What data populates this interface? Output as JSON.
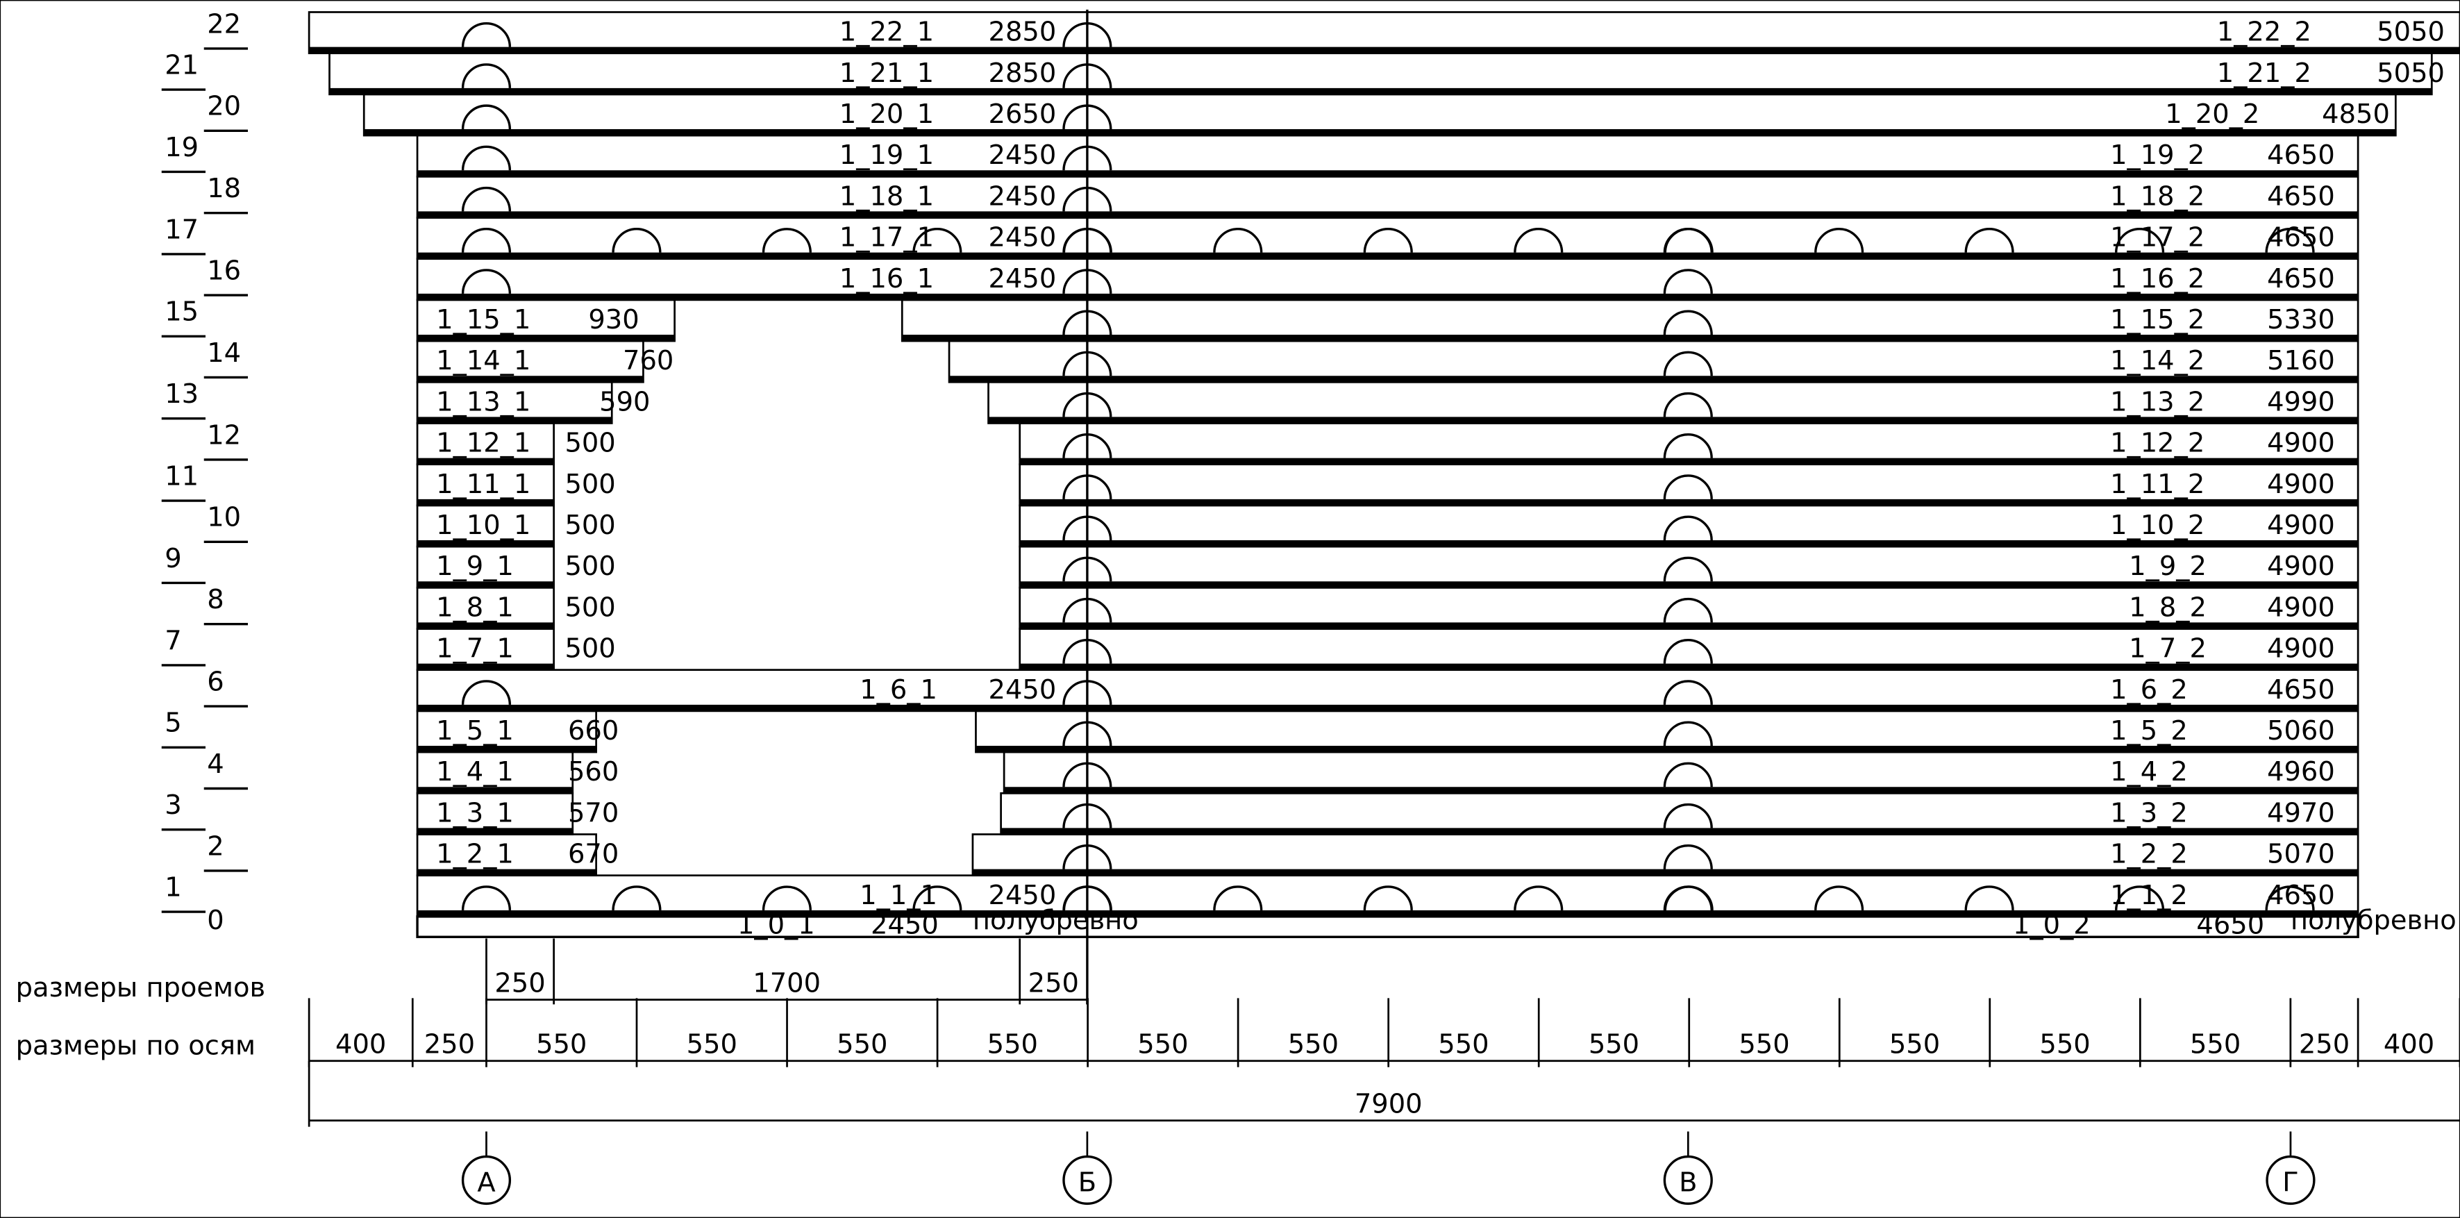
{
  "rows": [
    {
      "number": "0",
      "left": {
        "id": "1_0_1",
        "length": "2450",
        "note": "полубревно"
      },
      "right": {
        "id": "1_0_2",
        "length": "4650",
        "note": "полубревно"
      }
    },
    {
      "number": "1",
      "left": {
        "id": "1_1_1",
        "length": "2450"
      },
      "right": {
        "id": "1_1_2",
        "length": "4650"
      }
    },
    {
      "number": "2",
      "left": {
        "id": "1_2_1",
        "length": "670"
      },
      "right": {
        "id": "1_2_2",
        "length": "5070"
      }
    },
    {
      "number": "3",
      "left": {
        "id": "1_3_1",
        "length": "570"
      },
      "right": {
        "id": "1_3_2",
        "length": "4970"
      }
    },
    {
      "number": "4",
      "left": {
        "id": "1_4_1",
        "length": "560"
      },
      "right": {
        "id": "1_4_2",
        "length": "4960"
      }
    },
    {
      "number": "5",
      "left": {
        "id": "1_5_1",
        "length": "660"
      },
      "right": {
        "id": "1_5_2",
        "length": "5060"
      }
    },
    {
      "number": "6",
      "left": {
        "id": "1_6_1",
        "length": "2450"
      },
      "right": {
        "id": "1_6_2",
        "length": "4650"
      }
    },
    {
      "number": "7",
      "left": {
        "id": "1_7_1",
        "length": "500"
      },
      "right": {
        "id": "1_7_2",
        "length": "4900"
      }
    },
    {
      "number": "8",
      "left": {
        "id": "1_8_1",
        "length": "500"
      },
      "right": {
        "id": "1_8_2",
        "length": "4900"
      }
    },
    {
      "number": "9",
      "left": {
        "id": "1_9_1",
        "length": "500"
      },
      "right": {
        "id": "1_9_2",
        "length": "4900"
      }
    },
    {
      "number": "10",
      "left": {
        "id": "1_10_1",
        "length": "500"
      },
      "right": {
        "id": "1_10_2",
        "length": "4900"
      }
    },
    {
      "number": "11",
      "left": {
        "id": "1_11_1",
        "length": "500"
      },
      "right": {
        "id": "1_11_2",
        "length": "4900"
      }
    },
    {
      "number": "12",
      "left": {
        "id": "1_12_1",
        "length": "500"
      },
      "right": {
        "id": "1_12_2",
        "length": "4900"
      }
    },
    {
      "number": "13",
      "left": {
        "id": "1_13_1",
        "length": "590"
      },
      "right": {
        "id": "1_13_2",
        "length": "4990"
      }
    },
    {
      "number": "14",
      "left": {
        "id": "1_14_1",
        "length": "760"
      },
      "right": {
        "id": "1_14_2",
        "length": "5160"
      }
    },
    {
      "number": "15",
      "left": {
        "id": "1_15_1",
        "length": "930"
      },
      "right": {
        "id": "1_15_2",
        "length": "5330"
      }
    },
    {
      "number": "16",
      "left": {
        "id": "1_16_1",
        "length": "2450"
      },
      "right": {
        "id": "1_16_2",
        "length": "4650"
      }
    },
    {
      "number": "17",
      "left": {
        "id": "1_17_1",
        "length": "2450"
      },
      "right": {
        "id": "1_17_2",
        "length": "4650"
      }
    },
    {
      "number": "18",
      "left": {
        "id": "1_18_1",
        "length": "2450"
      },
      "right": {
        "id": "1_18_2",
        "length": "4650"
      }
    },
    {
      "number": "19",
      "left": {
        "id": "1_19_1",
        "length": "2450"
      },
      "right": {
        "id": "1_19_2",
        "length": "4650"
      }
    },
    {
      "number": "20",
      "left": {
        "id": "1_20_1",
        "length": "2650"
      },
      "right": {
        "id": "1_20_2",
        "length": "4850"
      }
    },
    {
      "number": "21",
      "left": {
        "id": "1_21_1",
        "length": "2850"
      },
      "right": {
        "id": "1_21_2",
        "length": "5050"
      }
    },
    {
      "number": "22",
      "left": {
        "id": "1_22_1",
        "length": "2850"
      },
      "right": {
        "id": "1_22_2",
        "length": "5050"
      }
    }
  ],
  "opening_dimensions": {
    "label": "размеры проемов",
    "values": [
      "250",
      "1700",
      "250"
    ]
  },
  "axis_dimensions": {
    "label": "размеры по осям",
    "values": [
      "400",
      "250",
      "550",
      "550",
      "550",
      "550",
      "550",
      "550",
      "550",
      "550",
      "550",
      "550",
      "550",
      "550",
      "250",
      "400"
    ],
    "total": "7900"
  },
  "axes": [
    "А",
    "Б",
    "В",
    "Г"
  ]
}
